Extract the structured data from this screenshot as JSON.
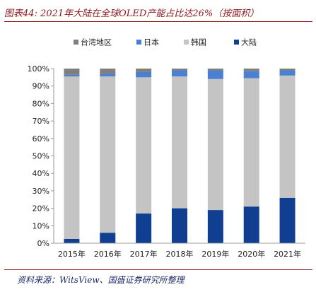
{
  "header": {
    "title": "图表44: 2021年大陆在全球OLED产能占比达26%（按面积）"
  },
  "footer": {
    "source": "资料来源：WitsView、国盛证券研究所整理"
  },
  "chart_data": {
    "type": "bar",
    "stacked": true,
    "title": "",
    "xlabel": "",
    "ylabel": "",
    "ylim": [
      0,
      100
    ],
    "y_ticks": [
      "0%",
      "10%",
      "20%",
      "30%",
      "40%",
      "50%",
      "60%",
      "70%",
      "80%",
      "90%",
      "100%"
    ],
    "categories": [
      "2015年",
      "2016年",
      "2017年",
      "2018年",
      "2019年",
      "2020年",
      "2021年"
    ],
    "legend_position": "top",
    "grid": false,
    "series": [
      {
        "name": "大陆",
        "color": "#103f91",
        "values": [
          2.5,
          6,
          17,
          20,
          19,
          21,
          26
        ]
      },
      {
        "name": "韩国",
        "color": "#c4c4c4",
        "values": [
          93,
          89.5,
          78,
          75.5,
          75,
          73.5,
          70
        ]
      },
      {
        "name": "日本",
        "color": "#4a7fd1",
        "values": [
          1,
          1.5,
          3,
          3.5,
          5,
          4,
          3
        ]
      },
      {
        "name": "台湾地区",
        "color": "#7f7f7f",
        "values": [
          3.5,
          3,
          2,
          1,
          1,
          1.5,
          1
        ]
      }
    ],
    "legend_order": [
      "台湾地区",
      "日本",
      "韩国",
      "大陆"
    ]
  }
}
